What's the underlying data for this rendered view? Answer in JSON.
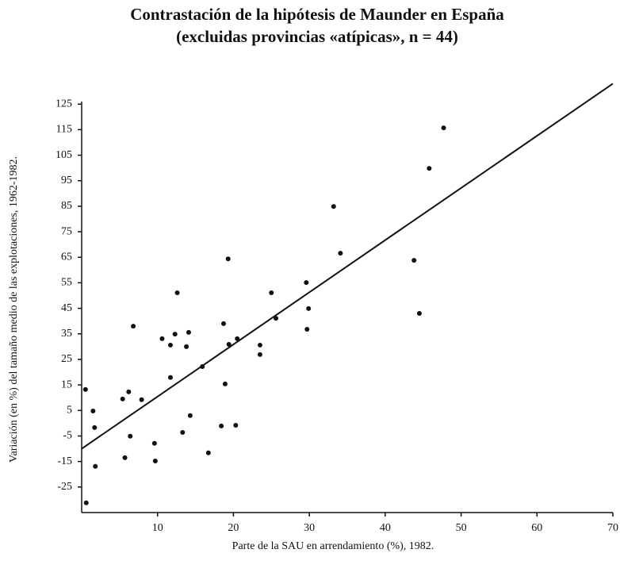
{
  "chart_data": {
    "type": "scatter",
    "title": "Contrastación de la hipótesis de Maunder en España",
    "subtitle": "(excluidas provincias «atípicas», n = 44)",
    "x_label": "Parte de la SAU en arrendamiento (%), 1982.",
    "y_label": "Variación (en %) del tamaño medio de las explotaciones, 1962-1982.",
    "color": "#111111",
    "x": [
      0.5,
      0.6,
      1.5,
      1.7,
      1.8,
      5.4,
      6.2,
      5.7,
      6.4,
      6.8,
      7.9,
      9.6,
      9.7,
      10.6,
      11.7,
      11.7,
      12.3,
      12.6,
      13.3,
      13.8,
      14.1,
      14.3,
      15.9,
      16.7,
      18.4,
      18.7,
      18.9,
      19.3,
      19.4,
      20.3,
      20.5,
      23.5,
      23.5,
      25,
      25.6,
      29.6,
      29.7,
      29.9,
      33.2,
      34.1,
      43.8,
      44.5,
      45.8,
      47.7
    ],
    "values": [
      13.2,
      -31.2,
      4.8,
      -1.7,
      -16.9,
      9.5,
      12.3,
      -13.5,
      -5.1,
      38,
      9.2,
      -7.9,
      -14.8,
      33.1,
      30.6,
      17.9,
      34.9,
      51.1,
      -3.6,
      30,
      35.6,
      3,
      22.2,
      -11.6,
      -1.1,
      39,
      15.4,
      64.4,
      30.9,
      -0.8,
      33.1,
      30.6,
      26.9,
      51.1,
      41.1,
      55.1,
      36.8,
      44.9,
      84.9,
      66.6,
      63.8,
      43,
      99.8,
      115.7
    ],
    "trend_line": {
      "x": [
        0,
        70
      ],
      "values": [
        -10,
        133
      ]
    },
    "xlim": [
      0,
      70
    ],
    "xticks": [
      10,
      20,
      30,
      40,
      50,
      60,
      70
    ],
    "ylim": [
      -35,
      126
    ],
    "yticks": [
      -25,
      -15,
      -5,
      5,
      15,
      25,
      35,
      45,
      55,
      65,
      75,
      85,
      95,
      105,
      115,
      125
    ]
  }
}
